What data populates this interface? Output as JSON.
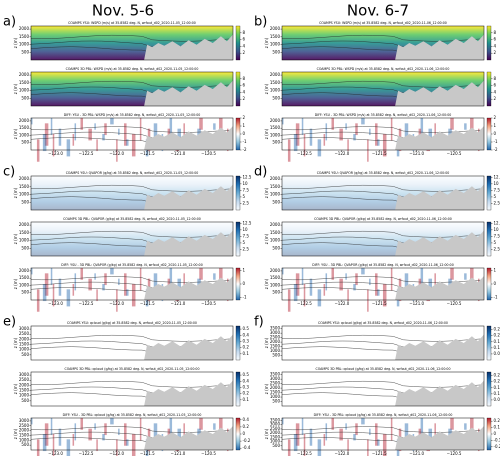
{
  "column_titles": [
    "Nov. 5-6",
    "Nov. 6-7"
  ],
  "panel_labels": [
    "a)",
    "b)",
    "c)",
    "d)",
    "e)",
    "f)"
  ],
  "chart_data": [
    {
      "type": "heatmap",
      "title": "COAMPS YSU: WSPD (m/s) at 35.8582 deg. N, wrfout_d02_2020-11-05_12:00:00",
      "ylabel": "z (m)",
      "ylim": [
        0,
        2200
      ],
      "yticks": [
        500,
        1000,
        1500,
        2000
      ],
      "colorbar": {
        "lim": [
          0,
          10
        ],
        "ticks": [
          2,
          4,
          6,
          8
        ],
        "colors": [
          "#fde725",
          "#5ec962",
          "#21918c",
          "#3b528b",
          "#440154"
        ]
      }
    },
    {
      "type": "heatmap",
      "title": "COAMPS 3D PBL: WSPD (m/s) at 35.8582 deg. N, wrfout_d02_2020-11-05_12:00:00",
      "ylabel": "z (m)",
      "ylim": [
        0,
        2200
      ],
      "yticks": [
        500,
        1000,
        1500,
        2000
      ],
      "colorbar": {
        "lim": [
          0,
          10
        ],
        "ticks": [
          2,
          4,
          6,
          8
        ],
        "colors": [
          "#fde725",
          "#5ec962",
          "#21918c",
          "#3b528b",
          "#440154"
        ]
      }
    },
    {
      "type": "heatmap",
      "title": "DIFF: YSU - 3D PBL: WSPD (m/s) at 35.8582 deg. N, wrfout_d02_2020-11-05_12:00:00",
      "ylabel": "z (m)",
      "ylim": [
        0,
        2200
      ],
      "yticks": [
        500,
        1000,
        1500,
        2000
      ],
      "xlim": [
        -123.4,
        -120.1
      ],
      "xticks": [
        {
          "value": -123,
          "label": "−123.0"
        },
        {
          "value": -122.5,
          "label": "−122.5"
        },
        {
          "value": -122,
          "label": "−122.0"
        },
        {
          "value": -121.5,
          "label": "−121.5"
        },
        {
          "value": -121,
          "label": "−121.0"
        },
        {
          "value": -120.5,
          "label": "−120.5"
        }
      ],
      "colorbar": {
        "lim": [
          -2,
          2
        ],
        "ticks": [
          -2,
          -1,
          0,
          1,
          2
        ],
        "colors": [
          "#b2182b",
          "#f4a582",
          "#ffffff",
          "#92c5de",
          "#2166ac"
        ]
      }
    },
    {
      "type": "heatmap",
      "title": "COAMPS YSU: WSPD (m/s) at 35.8582 deg. N, wrfout_d02_2020-11-06_12:00:00",
      "ylabel": "z (m)",
      "ylim": [
        0,
        2200
      ],
      "yticks": [
        500,
        1000,
        1500,
        2000
      ],
      "colorbar": {
        "lim": [
          0,
          10
        ],
        "ticks": [
          2,
          4,
          6,
          8
        ],
        "colors": [
          "#fde725",
          "#5ec962",
          "#21918c",
          "#3b528b",
          "#440154"
        ]
      }
    },
    {
      "type": "heatmap",
      "title": "COAMPS 3D PBL: WSPD (m/s) at 35.8582 deg. N, wrfout_d02_2020-11-06_12:00:00",
      "ylabel": "z (m)",
      "ylim": [
        0,
        2200
      ],
      "yticks": [
        500,
        1000,
        1500,
        2000
      ],
      "colorbar": {
        "lim": [
          0,
          10
        ],
        "ticks": [
          2,
          4,
          6,
          8
        ],
        "colors": [
          "#fde725",
          "#5ec962",
          "#21918c",
          "#3b528b",
          "#440154"
        ]
      }
    },
    {
      "type": "heatmap",
      "title": "DIFF: YSU - 3D PBL: WSPD (m/s) at 35.8582 deg. N, wrfout_d02_2020-11-06_12:00:00",
      "ylabel": "z (m)",
      "ylim": [
        0,
        2200
      ],
      "yticks": [
        500,
        1000,
        1500,
        2000
      ],
      "xlim": [
        -122.8,
        -120.1
      ],
      "xticks": [
        {
          "value": -122.5,
          "label": "−122.5"
        },
        {
          "value": -122,
          "label": "−122.0"
        },
        {
          "value": -121.5,
          "label": "−121.5"
        },
        {
          "value": -121,
          "label": "−121.0"
        },
        {
          "value": -120.5,
          "label": "−120.5"
        }
      ],
      "colorbar": {
        "lim": [
          -2,
          2
        ],
        "ticks": [
          -2,
          -1,
          0,
          1,
          2
        ],
        "colors": [
          "#b2182b",
          "#f4a582",
          "#ffffff",
          "#92c5de",
          "#2166ac"
        ]
      }
    },
    {
      "type": "heatmap",
      "title": "COAMPS YSU: QVAPOR (g/kg) at 35.8582 deg. N, wrfout_d02_2020-11-05_12:00:00",
      "ylabel": "z (m)",
      "ylim": [
        0,
        2200
      ],
      "yticks": [
        500,
        1000,
        1500,
        2000
      ],
      "colorbar": {
        "lim": [
          0,
          13
        ],
        "ticks": [
          2.5,
          5,
          7.5,
          10,
          12.5
        ],
        "colors": [
          "#08306b",
          "#2171b5",
          "#6baed6",
          "#c6dbef",
          "#f7fbff"
        ]
      }
    },
    {
      "type": "heatmap",
      "title": "COAMPS 3D PBL: QVAPOR (g/kg) at 35.8582 deg. N, wrfout_d02_2020-11-05_12:00:00",
      "ylabel": "z (m)",
      "ylim": [
        0,
        2200
      ],
      "yticks": [
        500,
        1000,
        1500,
        2000
      ],
      "colorbar": {
        "lim": [
          0,
          13
        ],
        "ticks": [
          2.5,
          5,
          7.5,
          10,
          12.5
        ],
        "colors": [
          "#08306b",
          "#2171b5",
          "#6baed6",
          "#c6dbef",
          "#f7fbff"
        ]
      }
    },
    {
      "type": "heatmap",
      "title": "DIFF: YSU - 3D PBL: QVAPOR (g/kg) at 35.8582 deg. N, wrfout_d02_2020-11-05_12:00:00",
      "ylabel": "z (m)",
      "ylim": [
        0,
        2200
      ],
      "yticks": [
        500,
        1000,
        1500,
        2000
      ],
      "xlim": [
        -123.4,
        -120.1
      ],
      "xticks": [
        {
          "value": -123,
          "label": "−123.0"
        },
        {
          "value": -122.5,
          "label": "−122.5"
        },
        {
          "value": -122,
          "label": "−122.0"
        },
        {
          "value": -121.5,
          "label": "−121.5"
        },
        {
          "value": -121,
          "label": "−121.0"
        },
        {
          "value": -120.5,
          "label": "−120.5"
        }
      ],
      "colorbar": {
        "lim": [
          -1.2,
          1.2
        ],
        "ticks": [
          -1,
          0,
          1
        ],
        "colors": [
          "#b2182b",
          "#f4a582",
          "#ffffff",
          "#92c5de",
          "#2166ac"
        ]
      }
    },
    {
      "type": "heatmap",
      "title": "COAMPS YSU: QVAPOR (g/kg) at 35.8582 deg. N, wrfout_d02_2020-11-06_12:00:00",
      "ylabel": "z (m)",
      "ylim": [
        0,
        2200
      ],
      "yticks": [
        500,
        1000,
        1500,
        2000
      ],
      "colorbar": {
        "lim": [
          0,
          13
        ],
        "ticks": [
          2.5,
          5,
          7.5,
          10,
          12.5
        ],
        "colors": [
          "#08306b",
          "#2171b5",
          "#6baed6",
          "#c6dbef",
          "#f7fbff"
        ]
      }
    },
    {
      "type": "heatmap",
      "title": "COAMPS 3D PBL: QVAPOR (g/kg) at 35.8582 deg. N, wrfout_d02_2020-11-06_12:00:00",
      "ylabel": "z (m)",
      "ylim": [
        0,
        2200
      ],
      "yticks": [
        500,
        1000,
        1500,
        2000
      ],
      "colorbar": {
        "lim": [
          0,
          13
        ],
        "ticks": [
          2.5,
          5,
          7.5,
          10,
          12.5
        ],
        "colors": [
          "#08306b",
          "#2171b5",
          "#6baed6",
          "#c6dbef",
          "#f7fbff"
        ]
      }
    },
    {
      "type": "heatmap",
      "title": "DIFF: YSU - 3D PBL: QVAPOR (g/kg) at 35.8582 deg. N, wrfout_d02_2020-11-06_12:00:00",
      "ylabel": "z (m)",
      "ylim": [
        0,
        2200
      ],
      "yticks": [
        500,
        1000,
        1500,
        2000
      ],
      "xlim": [
        -122.8,
        -120.1
      ],
      "xticks": [
        {
          "value": -122.5,
          "label": "−122.5"
        },
        {
          "value": -122,
          "label": "−122.0"
        },
        {
          "value": -121.5,
          "label": "−121.5"
        },
        {
          "value": -121,
          "label": "−121.0"
        },
        {
          "value": -120.5,
          "label": "−120.5"
        }
      ],
      "colorbar": {
        "lim": [
          -1.2,
          1.2
        ],
        "ticks": [
          -1,
          0,
          1
        ],
        "colors": [
          "#b2182b",
          "#f4a582",
          "#ffffff",
          "#92c5de",
          "#2166ac"
        ]
      }
    },
    {
      "type": "heatmap",
      "title": "COAMPS YSU: qcloud (g/kg) at 35.8582 deg. N, wrfout_d02_2020-11-05_12:00:00",
      "ylabel": "z (m)",
      "ylim": [
        0,
        3300
      ],
      "yticks": [
        500,
        1000,
        1500,
        2000,
        2500,
        3000
      ],
      "colorbar": {
        "lim": [
          0,
          0.55
        ],
        "ticks": [
          0.1,
          0.2,
          0.3,
          0.4,
          0.5
        ],
        "colors": [
          "#08306b",
          "#2171b5",
          "#6baed6",
          "#c6dbef",
          "#f7fbff"
        ]
      }
    },
    {
      "type": "heatmap",
      "title": "COAMPS 3D PBL: qcloud (g/kg) at 35.8582 deg. N, wrfout_d02_2020-11-05_12:00:00",
      "ylabel": "z (m)",
      "ylim": [
        0,
        3300
      ],
      "yticks": [
        500,
        1000,
        1500,
        2000,
        2500,
        3000
      ],
      "colorbar": {
        "lim": [
          0,
          0.55
        ],
        "ticks": [
          0.1,
          0.2,
          0.3,
          0.4,
          0.5
        ],
        "colors": [
          "#08306b",
          "#2171b5",
          "#6baed6",
          "#c6dbef",
          "#f7fbff"
        ]
      }
    },
    {
      "type": "heatmap",
      "title": "DIFF: YSU - 3D PBL: qcloud (g/kg) at 35.8582 deg. N, wrfout_d02_2020-11-05_12:00:00",
      "ylabel": "z (m)",
      "ylim": [
        0,
        3300
      ],
      "yticks": [
        500,
        1000,
        1500,
        2000,
        2500,
        3000
      ],
      "xlim": [
        -123.4,
        -120.1
      ],
      "xticks": [
        {
          "value": -123,
          "label": "−123.0"
        },
        {
          "value": -122.5,
          "label": "−122.5"
        },
        {
          "value": -122,
          "label": "−122.0"
        },
        {
          "value": -121.5,
          "label": "−121.5"
        },
        {
          "value": -121,
          "label": "−121.0"
        },
        {
          "value": -120.5,
          "label": "−120.5"
        }
      ],
      "colorbar": {
        "lim": [
          -0.45,
          0.45
        ],
        "ticks": [
          -0.4,
          -0.2,
          0,
          0.2,
          0.4
        ],
        "colors": [
          "#b2182b",
          "#f4a582",
          "#ffffff",
          "#92c5de",
          "#2166ac"
        ]
      }
    },
    {
      "type": "heatmap",
      "title": "COAMPS YSU: qcloud (g/kg) at 35.8582 deg. N, wrfout_d02_2020-11-06_12:00:00",
      "ylabel": "z (m)",
      "ylim": [
        0,
        3800
      ],
      "yticks": [
        500,
        1000,
        1500,
        2000,
        2500,
        3000,
        3500
      ],
      "colorbar": {
        "lim": [
          0,
          0.28
        ],
        "ticks": [
          0.05,
          0.1,
          0.15,
          0.2,
          0.25
        ],
        "colors": [
          "#08306b",
          "#2171b5",
          "#6baed6",
          "#c6dbef",
          "#f7fbff"
        ]
      }
    },
    {
      "type": "heatmap",
      "title": "COAMPS 3D PBL: qcloud (g/kg) at 35.8582 deg. N, wrfout_d02_2020-11-06_12:00:00",
      "ylabel": "z (m)",
      "ylim": [
        0,
        3800
      ],
      "yticks": [
        500,
        1000,
        1500,
        2000,
        2500,
        3000,
        3500
      ],
      "colorbar": {
        "lim": [
          0,
          0.28
        ],
        "ticks": [
          0.05,
          0.1,
          0.15,
          0.2,
          0.25
        ],
        "colors": [
          "#08306b",
          "#2171b5",
          "#6baed6",
          "#c6dbef",
          "#f7fbff"
        ]
      }
    },
    {
      "type": "heatmap",
      "title": "DIFF: YSU - 3D PBL: qcloud (g/kg) at 35.8582 deg. N, wrfout_d02_2020-11-06_12:00:00",
      "ylabel": "z (m)",
      "ylim": [
        0,
        3800
      ],
      "yticks": [
        500,
        1000,
        1500,
        2000,
        2500,
        3000,
        3500
      ],
      "xlim": [
        -122.8,
        -120.1
      ],
      "xticks": [
        {
          "value": -122.5,
          "label": "−122.5"
        },
        {
          "value": -122,
          "label": "−122.0"
        },
        {
          "value": -121.5,
          "label": "−121.5"
        },
        {
          "value": -121,
          "label": "−121.0"
        },
        {
          "value": -120.5,
          "label": "−120.5"
        }
      ],
      "colorbar": {
        "lim": [
          -0.25,
          0.25
        ],
        "ticks": [
          -0.2,
          -0.1,
          0,
          0.1,
          0.2
        ],
        "colors": [
          "#b2182b",
          "#f4a582",
          "#ffffff",
          "#92c5de",
          "#2166ac"
        ]
      }
    }
  ]
}
